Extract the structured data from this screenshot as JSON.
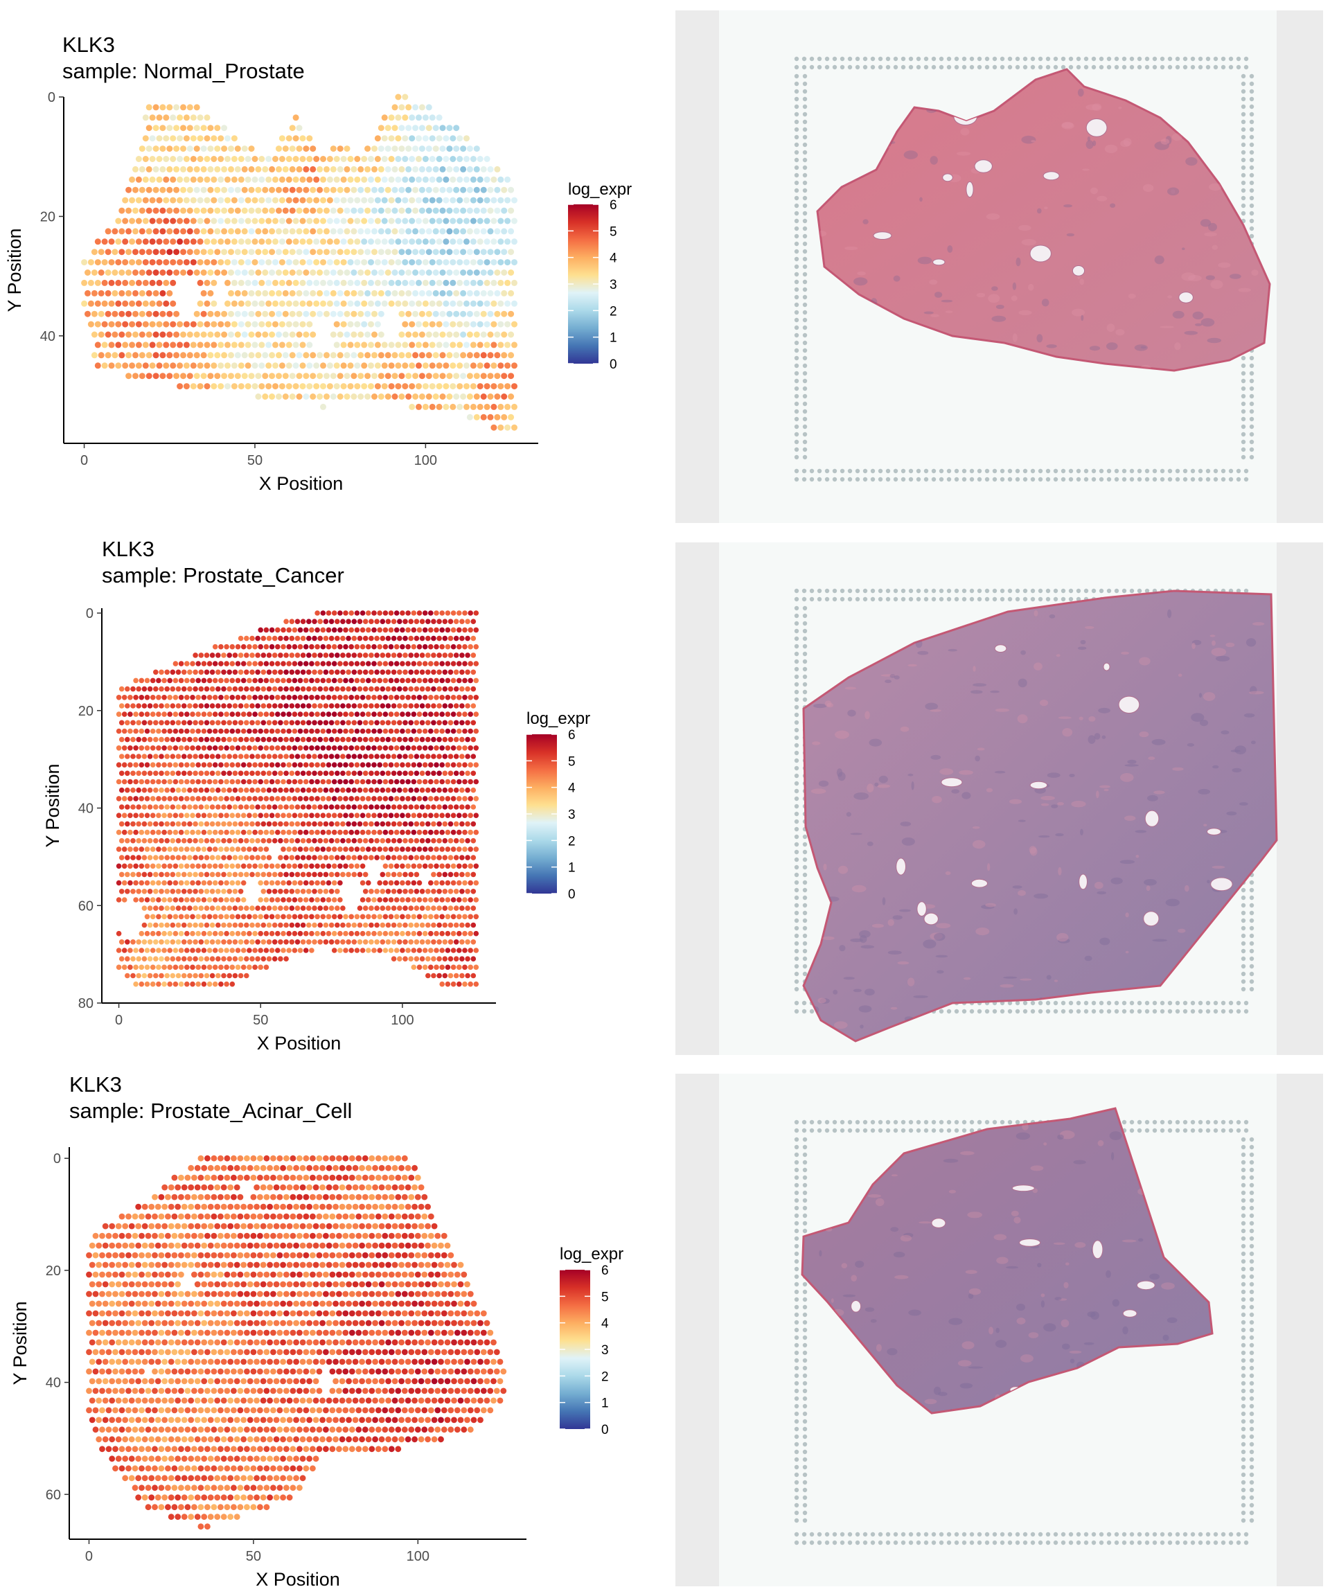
{
  "colors": {
    "scale": [
      "#313695",
      "#4575b4",
      "#74add1",
      "#abd9e9",
      "#e0f3f8",
      "#fee090",
      "#fdae61",
      "#f46d43",
      "#d73027",
      "#a50026"
    ],
    "image_frame": "#ebebeb",
    "slide_bg": "#f6f9f8",
    "fiducial": "#b7c3c5",
    "tissue_pink": "#d66a83",
    "tissue_purple": "#8f7ea6"
  },
  "chart_data": [
    {
      "type": "scatter",
      "title": "KLK3",
      "subtitle": "sample: Normal_Prostate",
      "xlabel": "X Position",
      "ylabel": "Y Position",
      "xlim": [
        -6,
        133
      ],
      "ylim": [
        0,
        58
      ],
      "y_reversed": true,
      "xticks": [
        0,
        50,
        100
      ],
      "yticks": [
        0,
        20,
        40
      ],
      "legend": {
        "title": "log_expr",
        "ticks": [
          6,
          5,
          4,
          3,
          2,
          1,
          0
        ],
        "position": "right"
      },
      "value_range": [
        0,
        6
      ],
      "grid": false,
      "shape_polygon": [
        [
          19,
          1
        ],
        [
          29,
          0
        ],
        [
          43,
          6
        ],
        [
          54,
          10
        ],
        [
          62,
          3
        ],
        [
          70,
          10
        ],
        [
          73,
          8
        ],
        [
          82,
          9
        ],
        [
          88,
          3
        ],
        [
          92,
          -1
        ],
        [
          102,
          2
        ],
        [
          116,
          8
        ],
        [
          127,
          16
        ],
        [
          127,
          56
        ],
        [
          114,
          55
        ],
        [
          108,
          52
        ],
        [
          96,
          52
        ],
        [
          84,
          51
        ],
        [
          70,
          52
        ],
        [
          57,
          51
        ],
        [
          39,
          49
        ],
        [
          18,
          48
        ],
        [
          4,
          45
        ],
        [
          0,
          38
        ],
        [
          0,
          27
        ],
        [
          7,
          22
        ],
        [
          13,
          15
        ]
      ],
      "region_means": [
        {
          "center": [
            20,
            35
          ],
          "radius": 24,
          "value": 4.8
        },
        {
          "center": [
            26,
            27
          ],
          "radius": 10,
          "value": 5.4
        },
        {
          "center": [
            63,
            16
          ],
          "radius": 10,
          "value": 4.5
        },
        {
          "center": [
            108,
            20
          ],
          "radius": 24,
          "value": 1.6
        },
        {
          "center": [
            88,
            28
          ],
          "radius": 18,
          "value": 2.4
        },
        {
          "center": [
            95,
            44
          ],
          "radius": 14,
          "value": 4.2
        },
        {
          "center": [
            120,
            48
          ],
          "radius": 9,
          "value": 4.8
        },
        {
          "center": [
            57,
            32
          ],
          "radius": 22,
          "value": 3.1
        },
        {
          "center": [
            40,
            12
          ],
          "radius": 14,
          "value": 3.3
        }
      ],
      "base_value": 3.4,
      "holes": [
        [
          30,
          33,
          3.5
        ],
        [
          40,
          33,
          2.5
        ],
        [
          70,
          40,
          3.0
        ],
        [
          90,
          38,
          2.5
        ]
      ]
    },
    {
      "type": "scatter",
      "title": "KLK3",
      "subtitle": "sample: Prostate_Cancer",
      "xlabel": "X Position",
      "ylabel": "Y Position",
      "xlim": [
        -6,
        133
      ],
      "ylim": [
        -1,
        80
      ],
      "y_reversed": true,
      "xticks": [
        0,
        50,
        100
      ],
      "yticks": [
        0,
        20,
        40,
        60,
        80
      ],
      "legend": {
        "title": "log_expr",
        "ticks": [
          6,
          5,
          4,
          3,
          2,
          1,
          0
        ],
        "position": "right"
      },
      "value_range": [
        0,
        6
      ],
      "grid": false,
      "shape_polygon": [
        [
          0,
          15
        ],
        [
          25,
          9
        ],
        [
          55,
          2
        ],
        [
          70,
          0
        ],
        [
          127,
          0
        ],
        [
          127,
          77
        ],
        [
          115,
          77
        ],
        [
          105,
          73
        ],
        [
          92,
          70
        ],
        [
          70,
          69
        ],
        [
          55,
          72
        ],
        [
          38,
          77
        ],
        [
          7,
          77
        ],
        [
          0,
          73
        ]
      ],
      "region_means": [
        {
          "center": [
            85,
            22
          ],
          "radius": 45,
          "value": 5.8
        },
        {
          "center": [
            40,
            25
          ],
          "radius": 20,
          "value": 5.3
        },
        {
          "center": [
            30,
            55
          ],
          "radius": 28,
          "value": 4.2
        },
        {
          "center": [
            90,
            65
          ],
          "radius": 25,
          "value": 4.4
        },
        {
          "center": [
            15,
            72
          ],
          "radius": 12,
          "value": 3.7
        },
        {
          "center": [
            60,
            45
          ],
          "radius": 20,
          "value": 4.8
        }
      ],
      "base_value": 5.0,
      "holes": [
        [
          4,
          63,
          4.5
        ],
        [
          47,
          57,
          3.0
        ],
        [
          55,
          50,
          2.0
        ],
        [
          82,
          58,
          3.5
        ],
        [
          90,
          53,
          2.5
        ],
        [
          108,
          55,
          2.0
        ]
      ]
    },
    {
      "type": "scatter",
      "title": "KLK3",
      "subtitle": "sample: Prostate_Acinar_Cell",
      "xlabel": "X Position",
      "ylabel": "Y Position",
      "xlim": [
        -6,
        133
      ],
      "ylim": [
        -2,
        68
      ],
      "y_reversed": true,
      "xticks": [
        0,
        50,
        100
      ],
      "yticks": [
        0,
        20,
        40,
        60
      ],
      "legend": {
        "title": "log_expr",
        "ticks": [
          6,
          5,
          4,
          3,
          2,
          1,
          0
        ],
        "position": "right"
      },
      "value_range": [
        0,
        6
      ],
      "grid": false,
      "shape_polygon": [
        [
          34,
          0
        ],
        [
          98,
          0
        ],
        [
          105,
          10
        ],
        [
          116,
          22
        ],
        [
          126,
          36
        ],
        [
          127,
          43
        ],
        [
          116,
          49
        ],
        [
          95,
          52
        ],
        [
          80,
          52
        ],
        [
          72,
          52
        ],
        [
          64,
          60
        ],
        [
          51,
          63
        ],
        [
          35,
          66
        ],
        [
          18,
          63
        ],
        [
          8,
          56
        ],
        [
          0,
          48
        ],
        [
          0,
          14
        ],
        [
          6,
          11
        ],
        [
          14,
          9
        ],
        [
          22,
          5
        ]
      ],
      "region_means": [
        {
          "center": [
            90,
            35
          ],
          "radius": 25,
          "value": 5.3
        },
        {
          "center": [
            110,
            38
          ],
          "radius": 14,
          "value": 5.5
        },
        {
          "center": [
            25,
            35
          ],
          "radius": 25,
          "value": 4.3
        },
        {
          "center": [
            40,
            58
          ],
          "radius": 14,
          "value": 4.4
        },
        {
          "center": [
            60,
            20
          ],
          "radius": 20,
          "value": 4.9
        }
      ],
      "base_value": 4.7,
      "holes": [
        [
          48,
          6,
          1.8
        ],
        [
          30,
          22,
          1.5
        ],
        [
          72,
          40,
          2.0
        ],
        [
          18,
          38,
          1.5
        ]
      ]
    }
  ]
}
